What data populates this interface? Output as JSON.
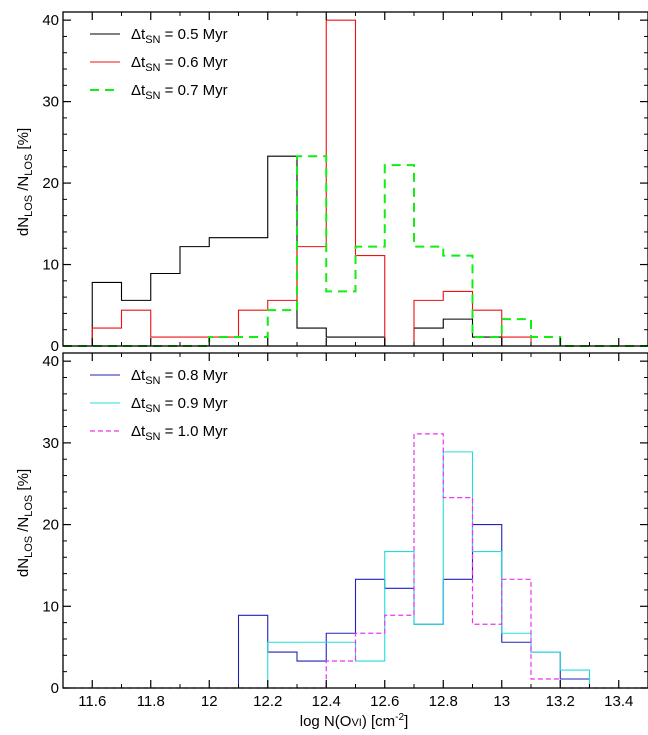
{
  "chart_data": [
    {
      "type": "histogram",
      "panel": "top",
      "x_edges": [
        11.5,
        11.6,
        11.7,
        11.8,
        11.9,
        12.0,
        12.1,
        12.2,
        12.3,
        12.4,
        12.5,
        12.6,
        12.7,
        12.8,
        12.9,
        13.0,
        13.1,
        13.2,
        13.3,
        13.4,
        13.5
      ],
      "xlim": [
        11.5,
        13.5
      ],
      "ylim": [
        0,
        41
      ],
      "xticks": [
        "11.6",
        "11.8",
        "12",
        "12.2",
        "12.4",
        "12.6",
        "12.8",
        "13",
        "13.2",
        "13.4"
      ],
      "yticks": [
        "0",
        "10",
        "20",
        "30",
        "40"
      ],
      "ylabel": "dN_LOS / N_LOS [%]",
      "legend_position": "top-left",
      "series": [
        {
          "name": "Δt_SN = 0.5 Myr",
          "color": "#000000",
          "dash": "solid",
          "values": [
            0,
            7.8,
            5.6,
            8.9,
            12.2,
            13.3,
            13.3,
            23.3,
            2.2,
            1.1,
            1.1,
            0,
            2.2,
            3.3,
            1.1,
            0,
            0,
            0,
            0,
            0
          ]
        },
        {
          "name": "Δt_SN = 0.6 Myr",
          "color": "#ee1111",
          "dash": "solid",
          "values": [
            0,
            2.2,
            4.4,
            1.1,
            1.1,
            1.1,
            4.4,
            5.6,
            12.2,
            40.0,
            11.1,
            0,
            5.6,
            6.7,
            4.4,
            1.1,
            0,
            0,
            0,
            0
          ]
        },
        {
          "name": "Δt_SN = 0.7 Myr",
          "color": "#11ee11",
          "dash": "dashed",
          "values": [
            0,
            0,
            0,
            0,
            0,
            1.1,
            1.1,
            4.4,
            23.3,
            6.7,
            12.2,
            22.2,
            12.2,
            11.1,
            1.1,
            3.3,
            1.1,
            0,
            0,
            0
          ]
        }
      ]
    },
    {
      "type": "histogram",
      "panel": "bottom",
      "x_edges": [
        11.5,
        11.6,
        11.7,
        11.8,
        11.9,
        12.0,
        12.1,
        12.2,
        12.3,
        12.4,
        12.5,
        12.6,
        12.7,
        12.8,
        12.9,
        13.0,
        13.1,
        13.2,
        13.3,
        13.4,
        13.5
      ],
      "xlim": [
        11.5,
        13.5
      ],
      "ylim": [
        0,
        41
      ],
      "xticks": [
        "11.6",
        "11.8",
        "12",
        "12.2",
        "12.4",
        "12.6",
        "12.8",
        "13",
        "13.2",
        "13.4"
      ],
      "yticks": [
        "0",
        "10",
        "20",
        "30",
        "40"
      ],
      "ylabel": "dN_LOS / N_LOS [%]",
      "xlabel": "log N(OVI) [cm^-2]",
      "legend_position": "top-left",
      "series": [
        {
          "name": "Δt_SN = 0.8 Myr",
          "color": "#2222bb",
          "dash": "solid",
          "values": [
            0,
            0,
            0,
            0,
            0,
            0,
            8.9,
            4.4,
            3.3,
            6.7,
            13.3,
            12.2,
            7.8,
            13.3,
            20.0,
            5.6,
            4.4,
            1.1,
            0,
            0
          ]
        },
        {
          "name": "Δt_SN = 0.9 Myr",
          "color": "#22dddd",
          "dash": "solid",
          "values": [
            0,
            0,
            0,
            0,
            0,
            0,
            0,
            5.6,
            5.6,
            5.6,
            3.3,
            16.7,
            7.8,
            28.9,
            16.7,
            6.7,
            4.4,
            2.2,
            0,
            0
          ]
        },
        {
          "name": "Δt_SN = 1.0 Myr",
          "color": "#ee33ee",
          "dash": "dashed",
          "values": [
            0,
            0,
            0,
            0,
            0,
            0,
            0,
            0,
            0,
            3.3,
            6.7,
            8.9,
            31.1,
            23.3,
            7.8,
            13.3,
            1.1,
            0,
            0,
            0
          ]
        }
      ]
    }
  ],
  "legend": {
    "top": [
      {
        "prefix": "Δt",
        "sub": "SN",
        "suffix": " = 0.5 Myr"
      },
      {
        "prefix": "Δt",
        "sub": "SN",
        "suffix": " = 0.6 Myr"
      },
      {
        "prefix": "Δt",
        "sub": "SN",
        "suffix": " = 0.7 Myr"
      }
    ],
    "bottom": [
      {
        "prefix": "Δt",
        "sub": "SN",
        "suffix": " = 0.8 Myr"
      },
      {
        "prefix": "Δt",
        "sub": "SN",
        "suffix": " = 0.9 Myr"
      },
      {
        "prefix": "Δt",
        "sub": "SN",
        "suffix": " = 1.0 Myr"
      }
    ]
  },
  "axis": {
    "ylabel": {
      "a": "dN",
      "a_sub": "LOS",
      "b": " /N",
      "b_sub": "LOS",
      "c": " [%]"
    },
    "xlabel": {
      "a": "log N(O",
      "small": "VI",
      "b": ") [cm",
      "sup": "-2",
      "c": "]"
    }
  }
}
